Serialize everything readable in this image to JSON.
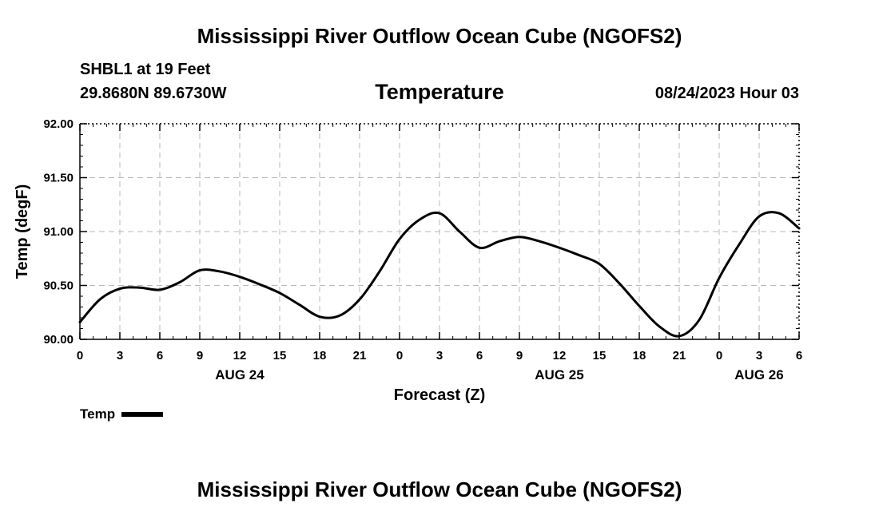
{
  "page": {
    "title_top": "Mississippi River Outflow Ocean Cube (NGOFS2)",
    "title_bottom": "Mississippi River Outflow Ocean Cube (NGOFS2)",
    "station": "SHBL1 at 19 Feet",
    "coordinates": "29.8680N  89.6730W",
    "datetime": "08/24/2023 Hour 03"
  },
  "chart_data": {
    "type": "line",
    "title": "Temperature",
    "xlabel": "Forecast (Z)",
    "ylabel": "Temp (degF)",
    "xlim": [
      0,
      54
    ],
    "ylim": [
      90.0,
      92.0
    ],
    "grid": true,
    "x_ticks": [
      0,
      3,
      6,
      9,
      12,
      15,
      18,
      21,
      24,
      27,
      30,
      33,
      36,
      39,
      42,
      45,
      48,
      51,
      54
    ],
    "x_tick_labels": [
      "0",
      "3",
      "6",
      "9",
      "12",
      "15",
      "18",
      "21",
      "0",
      "3",
      "6",
      "9",
      "12",
      "15",
      "18",
      "21",
      "0",
      "3",
      "6"
    ],
    "y_ticks": [
      90.0,
      90.5,
      91.0,
      91.5,
      92.0
    ],
    "y_tick_labels": [
      "90.00",
      "90.50",
      "91.00",
      "91.50",
      "92.00"
    ],
    "day_labels": [
      {
        "x": 12,
        "label": "AUG 24"
      },
      {
        "x": 36,
        "label": "AUG 25"
      },
      {
        "x": 51,
        "label": "AUG 26"
      }
    ],
    "legend": {
      "position": "bottom-left",
      "label": "Temp"
    },
    "series": [
      {
        "name": "Temp",
        "color": "#000000",
        "x": [
          0,
          1.5,
          3,
          4.5,
          6,
          7.5,
          9,
          10.5,
          12,
          13.5,
          15,
          16.5,
          18,
          19.5,
          21,
          22.5,
          24,
          25.5,
          27,
          28.5,
          30,
          31.5,
          33,
          34.5,
          36,
          37.5,
          39,
          40.5,
          42,
          43.5,
          45,
          46.5,
          48,
          49.5,
          51,
          52.5,
          54
        ],
        "values": [
          90.16,
          90.37,
          90.47,
          90.48,
          90.46,
          90.53,
          90.64,
          90.63,
          90.58,
          90.51,
          90.43,
          90.32,
          90.21,
          90.22,
          90.37,
          90.63,
          90.93,
          91.11,
          91.17,
          91.0,
          90.85,
          90.91,
          90.95,
          90.91,
          90.85,
          90.78,
          90.7,
          90.52,
          90.31,
          90.12,
          90.03,
          90.18,
          90.57,
          90.88,
          91.14,
          91.17,
          91.03
        ]
      }
    ]
  }
}
